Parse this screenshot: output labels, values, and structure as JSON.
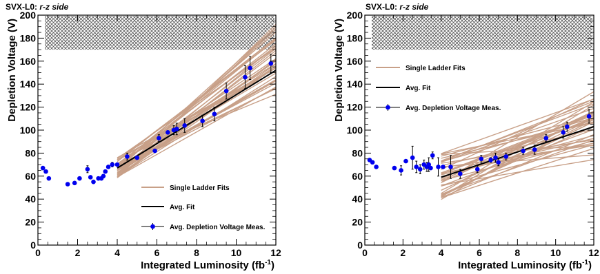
{
  "colors": {
    "fit_line": "#c8a088",
    "avg_line": "#000000",
    "marker": "#0000ee",
    "hatch": "#555555"
  },
  "chart_data": [
    {
      "type": "scatter",
      "title_prefix": "SVX-L0: ",
      "title_italic": "r-z side",
      "xlabel": "Integrated Luminosity (fb",
      "xlabel_sup": "-1",
      "xlabel_suffix": ")",
      "ylabel": "Depletion Voltage (V)",
      "xlim": [
        0,
        12
      ],
      "ylim": [
        0,
        200
      ],
      "xticks": [
        0,
        2,
        4,
        6,
        8,
        10,
        12
      ],
      "yticks": [
        0,
        20,
        40,
        60,
        80,
        100,
        120,
        140,
        160,
        180,
        200
      ],
      "grid": false,
      "excluded_band": [
        170,
        200
      ],
      "legend_position": "bottom-right",
      "legend": [
        "Single Ladder Fits",
        "Avg. Fit",
        "Avg. Depletion Voltage Meas."
      ],
      "avg_fit": {
        "x": [
          4.0,
          12.0
        ],
        "y": [
          67,
          152
        ]
      },
      "single_fit_x_range": [
        4.0,
        12.0
      ],
      "single_fit_start_range": [
        58,
        76
      ],
      "single_fit_end_range": [
        125,
        197
      ],
      "single_fit_count": 40,
      "measurements": [
        {
          "x": 0.25,
          "y": 67,
          "err": 0
        },
        {
          "x": 0.4,
          "y": 64,
          "err": 0
        },
        {
          "x": 0.55,
          "y": 58,
          "err": 0
        },
        {
          "x": 1.5,
          "y": 53,
          "err": 0
        },
        {
          "x": 1.85,
          "y": 54,
          "err": 0
        },
        {
          "x": 2.1,
          "y": 58,
          "err": 0
        },
        {
          "x": 2.5,
          "y": 66,
          "err": 3
        },
        {
          "x": 2.65,
          "y": 59,
          "err": 0
        },
        {
          "x": 2.8,
          "y": 55,
          "err": 0
        },
        {
          "x": 3.05,
          "y": 58,
          "err": 0
        },
        {
          "x": 3.2,
          "y": 58,
          "err": 0
        },
        {
          "x": 3.3,
          "y": 60,
          "err": 0
        },
        {
          "x": 3.4,
          "y": 64,
          "err": 0
        },
        {
          "x": 3.55,
          "y": 68,
          "err": 0
        },
        {
          "x": 3.75,
          "y": 70,
          "err": 2
        },
        {
          "x": 4.0,
          "y": 70,
          "err": 0
        },
        {
          "x": 4.5,
          "y": 77,
          "err": 3
        },
        {
          "x": 5.0,
          "y": 76,
          "err": 0
        },
        {
          "x": 5.9,
          "y": 82,
          "err": 0
        },
        {
          "x": 6.1,
          "y": 93,
          "err": 3
        },
        {
          "x": 6.55,
          "y": 98,
          "err": 0
        },
        {
          "x": 6.85,
          "y": 100,
          "err": 4
        },
        {
          "x": 7.0,
          "y": 101,
          "err": 5
        },
        {
          "x": 7.4,
          "y": 104,
          "err": 6
        },
        {
          "x": 8.3,
          "y": 108,
          "err": 5
        },
        {
          "x": 8.9,
          "y": 114,
          "err": 6
        },
        {
          "x": 9.5,
          "y": 134,
          "err": 7
        },
        {
          "x": 10.45,
          "y": 146,
          "err": 10
        },
        {
          "x": 10.7,
          "y": 154,
          "err": 10
        },
        {
          "x": 11.75,
          "y": 158,
          "err": 8
        }
      ]
    },
    {
      "type": "scatter",
      "title_prefix": "SVX-L0: ",
      "title_italic": "r-z side",
      "xlabel": "Integrated Luminosity (fb",
      "xlabel_sup": "-1",
      "xlabel_suffix": ")",
      "ylabel": "Depletion Voltage (V)",
      "xlim": [
        0,
        12
      ],
      "ylim": [
        0,
        200
      ],
      "xticks": [
        0,
        2,
        4,
        6,
        8,
        10,
        12
      ],
      "yticks": [
        0,
        20,
        40,
        60,
        80,
        100,
        120,
        140,
        160,
        180,
        200
      ],
      "grid": false,
      "excluded_band": [
        170,
        200
      ],
      "legend_position": "top-left",
      "legend": [
        "Single Ladder Fits",
        "Avg. Fit",
        "Avg. Depletion Voltage Meas."
      ],
      "avg_fit": {
        "x": [
          4.0,
          12.0
        ],
        "y": [
          59,
          103
        ]
      },
      "single_fit_x_range": [
        4.0,
        12.0
      ],
      "single_fit_start_range": [
        39,
        80
      ],
      "single_fit_end_range": [
        74,
        138
      ],
      "single_fit_count": 40,
      "measurements": [
        {
          "x": 0.25,
          "y": 74,
          "err": 0
        },
        {
          "x": 0.4,
          "y": 72,
          "err": 0
        },
        {
          "x": 0.6,
          "y": 68,
          "err": 0
        },
        {
          "x": 1.55,
          "y": 67,
          "err": 0
        },
        {
          "x": 1.9,
          "y": 65,
          "err": 4
        },
        {
          "x": 2.15,
          "y": 73,
          "err": 0
        },
        {
          "x": 2.5,
          "y": 76,
          "err": 10
        },
        {
          "x": 2.7,
          "y": 68,
          "err": 5
        },
        {
          "x": 2.9,
          "y": 66,
          "err": 4
        },
        {
          "x": 3.1,
          "y": 70,
          "err": 4
        },
        {
          "x": 3.25,
          "y": 68,
          "err": 4
        },
        {
          "x": 3.35,
          "y": 70,
          "err": 6
        },
        {
          "x": 3.45,
          "y": 67,
          "err": 0
        },
        {
          "x": 3.55,
          "y": 78,
          "err": 3
        },
        {
          "x": 3.85,
          "y": 68,
          "err": 8
        },
        {
          "x": 4.1,
          "y": 68,
          "err": 0
        },
        {
          "x": 4.5,
          "y": 68,
          "err": 10
        },
        {
          "x": 5.0,
          "y": 62,
          "err": 4
        },
        {
          "x": 5.9,
          "y": 66,
          "err": 3
        },
        {
          "x": 6.1,
          "y": 75,
          "err": 3
        },
        {
          "x": 6.6,
          "y": 74,
          "err": 2
        },
        {
          "x": 6.85,
          "y": 76,
          "err": 4
        },
        {
          "x": 7.0,
          "y": 72,
          "err": 3
        },
        {
          "x": 7.4,
          "y": 77,
          "err": 3
        },
        {
          "x": 8.3,
          "y": 82,
          "err": 3
        },
        {
          "x": 8.9,
          "y": 83,
          "err": 4
        },
        {
          "x": 9.5,
          "y": 93,
          "err": 3
        },
        {
          "x": 10.4,
          "y": 98,
          "err": 5
        },
        {
          "x": 10.6,
          "y": 103,
          "err": 4
        },
        {
          "x": 11.75,
          "y": 112,
          "err": 6
        }
      ]
    }
  ]
}
